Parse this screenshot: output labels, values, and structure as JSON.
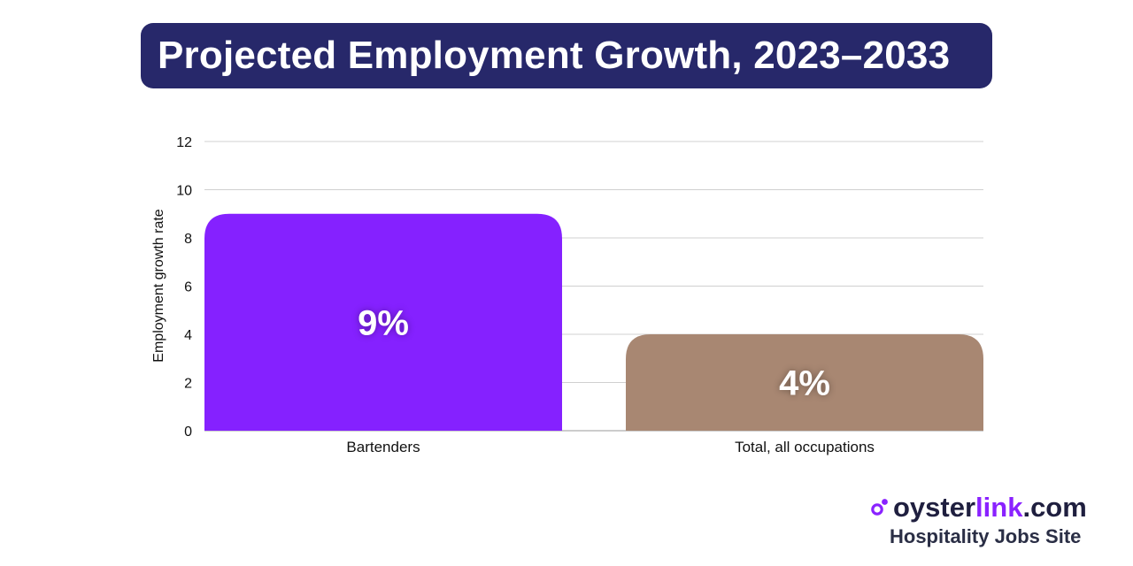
{
  "chart_data": {
    "type": "bar",
    "title": "Projected Employment Growth, 2023–2033",
    "xlabel": "",
    "ylabel": "Employment growth rate",
    "categories": [
      "Bartenders",
      "Total, all occupations"
    ],
    "values": [
      9,
      4
    ],
    "value_labels": [
      "9%",
      "4%"
    ],
    "bar_colors": [
      "#8521ff",
      "#a88772"
    ],
    "ylim": [
      0,
      12
    ],
    "yticks": [
      0,
      2,
      4,
      6,
      8,
      10,
      12
    ],
    "grid": true
  },
  "brand": {
    "name_part1": "oyster",
    "name_part2": "link",
    "name_part3": ".com",
    "tagline": "Hospitality Jobs Site",
    "accent_color": "#8a22ff",
    "text_color": "#1f1f3f"
  },
  "colors": {
    "title_background": "#27286a",
    "grid": "#d0d0d0"
  }
}
